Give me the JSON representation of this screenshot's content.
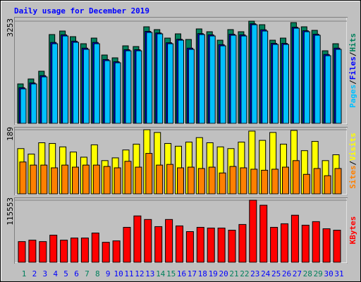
{
  "chart_data": {
    "type": "bar",
    "title": "Daily usage for December 2019",
    "categories": [
      "1",
      "2",
      "3",
      "4",
      "5",
      "6",
      "7",
      "8",
      "9",
      "10",
      "11",
      "12",
      "13",
      "14",
      "15",
      "16",
      "17",
      "18",
      "19",
      "20",
      "21",
      "22",
      "23",
      "24",
      "25",
      "26",
      "27",
      "28",
      "29",
      "30",
      "31"
    ],
    "weekend_categories": [
      "1",
      "7",
      "8",
      "14",
      "15",
      "21",
      "22",
      "28",
      "29"
    ],
    "weekday_color": "#0000ff",
    "weekend_color": "#00805c",
    "separator": "/",
    "panels": [
      {
        "ylim": [
          0,
          3253
        ],
        "yticks": [
          3253
        ],
        "series": [
          {
            "name": "Hits",
            "color": "#00805c",
            "values": [
              1270,
              1426,
              1671,
              2830,
              2941,
              2763,
              2540,
              2718,
              2183,
              2094,
              2473,
              2451,
              3075,
              2986,
              2718,
              2852,
              2674,
              3008,
              2919,
              2651,
              2986,
              2919,
              3253,
              3141,
              2651,
              2718,
              3208,
              3075,
              2963,
              2317,
              2540
            ]
          },
          {
            "name": "Files",
            "color": "#0000ff",
            "values": [
              1150,
              1300,
              1530,
              2580,
              2820,
              2620,
              2400,
              2580,
              2040,
              1970,
              2350,
              2350,
              2930,
              2880,
              2570,
              2680,
              2400,
              2860,
              2820,
              2510,
              2840,
              2820,
              3170,
              2980,
              2550,
              2550,
              3060,
              2950,
              2840,
              2200,
              2400
            ]
          },
          {
            "name": "Pages",
            "color": "#00c0ff",
            "values": [
              1114,
              1270,
              1493,
              2540,
              2785,
              2585,
              2362,
              2540,
              2005,
              1938,
              2317,
              2317,
              2896,
              2852,
              2540,
              2651,
              2362,
              2830,
              2785,
              2473,
              2807,
              2785,
              3141,
              2941,
              2518,
              2518,
              3030,
              2919,
              2807,
              2161,
              2362
            ]
          }
        ]
      },
      {
        "ylim": [
          0,
          189
        ],
        "yticks": [
          189
        ],
        "series": [
          {
            "name": "Visits",
            "color": "#ffff00",
            "values": [
              134,
              118,
              151,
              149,
              139,
              124,
              109,
              145,
              99,
              107,
              130,
              147,
              189,
              181,
              149,
              141,
              153,
              166,
              151,
              139,
              134,
              153,
              185,
              158,
              181,
              147,
              187,
              128,
              155,
              99,
              116
            ]
          },
          {
            "name": "Sites",
            "color": "#ff8000",
            "values": [
              95,
              86,
              86,
              78,
              86,
              80,
              86,
              86,
              82,
              78,
              97,
              80,
              120,
              86,
              88,
              78,
              80,
              76,
              80,
              63,
              82,
              78,
              74,
              71,
              74,
              80,
              99,
              59,
              76,
              55,
              76
            ]
          }
        ]
      },
      {
        "ylim": [
          0,
          115553
        ],
        "yticks": [
          115553
        ],
        "series": [
          {
            "name": "KBytes",
            "color": "#ff0000",
            "values": [
              39390,
              42016,
              39390,
              51207,
              42016,
              45955,
              45955,
              55146,
              38077,
              40703,
              65650,
              86658,
              80093,
              66963,
              80093,
              68276,
              57772,
              65650,
              64337,
              64337,
              60398,
              70902,
              115553,
              106353,
              65650,
              72215,
              87971,
              69589,
              76154,
              63024,
              60398
            ]
          }
        ]
      }
    ]
  }
}
